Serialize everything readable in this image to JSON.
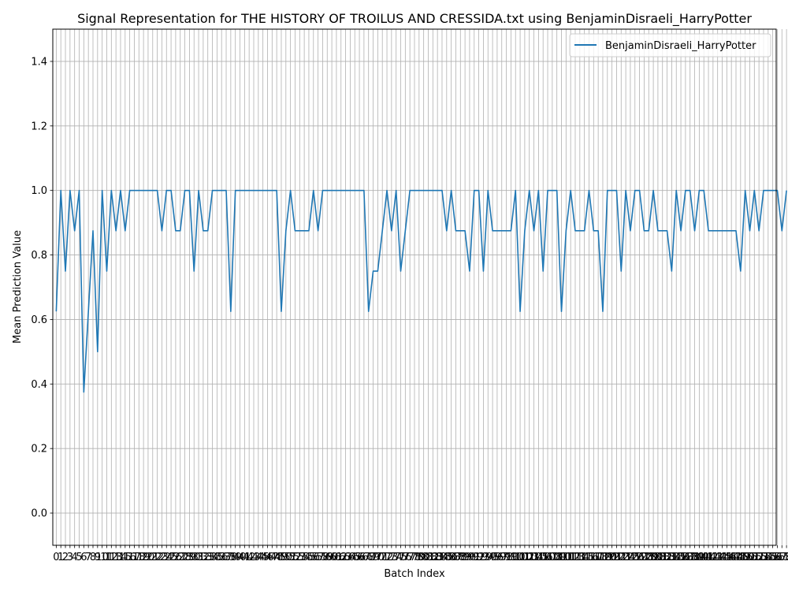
{
  "chart_data": {
    "type": "line",
    "title": "Signal Representation for THE HISTORY OF TROILUS AND CRESSIDA.txt using BenjaminDisraeli_HarryPotter",
    "xlabel": "Batch Index",
    "ylabel": "Mean Prediction Value",
    "ylim": [
      -0.1,
      1.5
    ],
    "yticks": [
      0.0,
      0.2,
      0.4,
      0.6,
      0.8,
      1.0,
      1.2,
      1.4
    ],
    "xlim": [
      -0.75,
      156.75
    ],
    "grid": true,
    "legend": "top-right",
    "line_color": "#1f77b4",
    "series": [
      {
        "name": "BenjaminDisraeli_HarryPotter",
        "values": [
          0.625,
          1.0,
          0.75,
          1.0,
          0.875,
          1.0,
          0.375,
          0.625,
          0.875,
          0.5,
          1.0,
          0.75,
          1.0,
          0.875,
          1.0,
          0.875,
          1.0,
          1.0,
          1.0,
          1.0,
          1.0,
          1.0,
          1.0,
          0.875,
          1.0,
          1.0,
          0.875,
          0.875,
          1.0,
          1.0,
          0.75,
          1.0,
          0.875,
          0.875,
          1.0,
          1.0,
          1.0,
          1.0,
          0.625,
          1.0,
          1.0,
          1.0,
          1.0,
          1.0,
          1.0,
          1.0,
          1.0,
          1.0,
          1.0,
          0.625,
          0.875,
          1.0,
          0.875,
          0.875,
          0.875,
          0.875,
          1.0,
          0.875,
          1.0,
          1.0,
          1.0,
          1.0,
          1.0,
          1.0,
          1.0,
          1.0,
          1.0,
          1.0,
          0.625,
          0.75,
          0.75,
          0.875,
          1.0,
          0.875,
          1.0,
          0.75,
          0.875,
          1.0,
          1.0,
          1.0,
          1.0,
          1.0,
          1.0,
          1.0,
          1.0,
          0.875,
          1.0,
          0.875,
          0.875,
          0.875,
          0.75,
          1.0,
          1.0,
          0.75,
          1.0,
          0.875,
          0.875,
          0.875,
          0.875,
          0.875,
          1.0,
          0.625,
          0.875,
          1.0,
          0.875,
          1.0,
          0.75,
          1.0,
          1.0,
          1.0,
          0.625,
          0.875,
          1.0,
          0.875,
          0.875,
          0.875,
          1.0,
          0.875,
          0.875,
          0.625,
          1.0,
          1.0,
          1.0,
          0.75,
          1.0,
          0.875,
          1.0,
          1.0,
          0.875,
          0.875,
          1.0,
          0.875,
          0.875,
          0.875,
          0.75,
          1.0,
          0.875,
          1.0,
          1.0,
          0.875,
          1.0,
          1.0,
          0.875,
          0.875,
          0.875,
          0.875,
          0.875,
          0.875,
          0.875,
          0.75,
          1.0,
          0.875,
          1.0,
          0.875,
          1.0,
          1.0,
          1.0,
          1.0,
          0.875,
          1.0
        ]
      }
    ]
  }
}
